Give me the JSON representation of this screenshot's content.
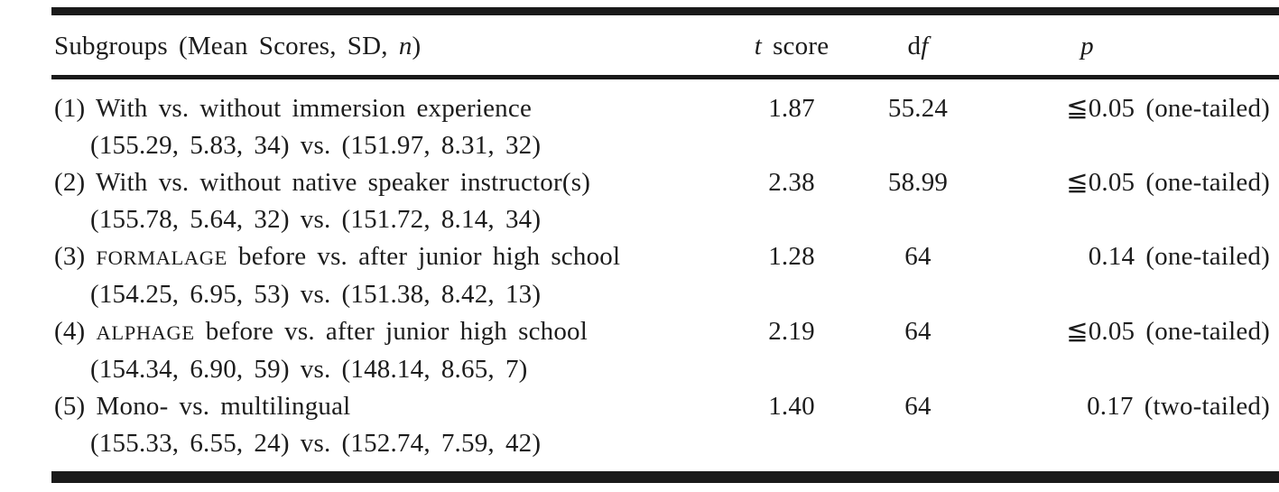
{
  "header": {
    "subgroups_prefix": "Subgroups (Mean Scores, SD, ",
    "subgroups_n": "n",
    "subgroups_suffix": ")",
    "t_italic": "t",
    "t_suffix": " score",
    "df_d": "d",
    "df_f": "f",
    "p": "p"
  },
  "rows": [
    {
      "label_parts": [
        {
          "text": "(1) With vs. without immersion experience",
          "smallcaps": false
        }
      ],
      "detail": "(155.29, 5.83, 34) vs. (151.97, 8.31, 32)",
      "t_score": "1.87",
      "df": "55.24",
      "p": "≦0.05 (one-tailed)"
    },
    {
      "label_parts": [
        {
          "text": "(2) With vs. without native speaker instructor(s)",
          "smallcaps": false
        }
      ],
      "detail": "(155.78, 5.64, 32) vs. (151.72, 8.14, 34)",
      "t_score": "2.38",
      "df": "58.99",
      "p": "≦0.05 (one-tailed)"
    },
    {
      "label_parts": [
        {
          "text": "(3) ",
          "smallcaps": false
        },
        {
          "text": "FORMALAGE",
          "smallcaps": true
        },
        {
          "text": " before vs. after junior high school",
          "smallcaps": false
        }
      ],
      "detail": "(154.25, 6.95, 53) vs. (151.38, 8.42, 13)",
      "t_score": "1.28",
      "df": "64",
      "p": "0.14 (one-tailed)"
    },
    {
      "label_parts": [
        {
          "text": "(4) ",
          "smallcaps": false
        },
        {
          "text": "ALPHAGE",
          "smallcaps": true
        },
        {
          "text": " before vs. after junior high school",
          "smallcaps": false
        }
      ],
      "detail": "(154.34, 6.90, 59) vs. (148.14, 8.65, 7)",
      "t_score": "2.19",
      "df": "64",
      "p": "≦0.05 (one-tailed)"
    },
    {
      "label_parts": [
        {
          "text": "(5) Mono- vs. multilingual",
          "smallcaps": false
        }
      ],
      "detail": "(155.33, 6.55, 24) vs. (152.74, 7.59, 42)",
      "t_score": "1.40",
      "df": "64",
      "p": "0.17 (two-tailed)"
    }
  ]
}
